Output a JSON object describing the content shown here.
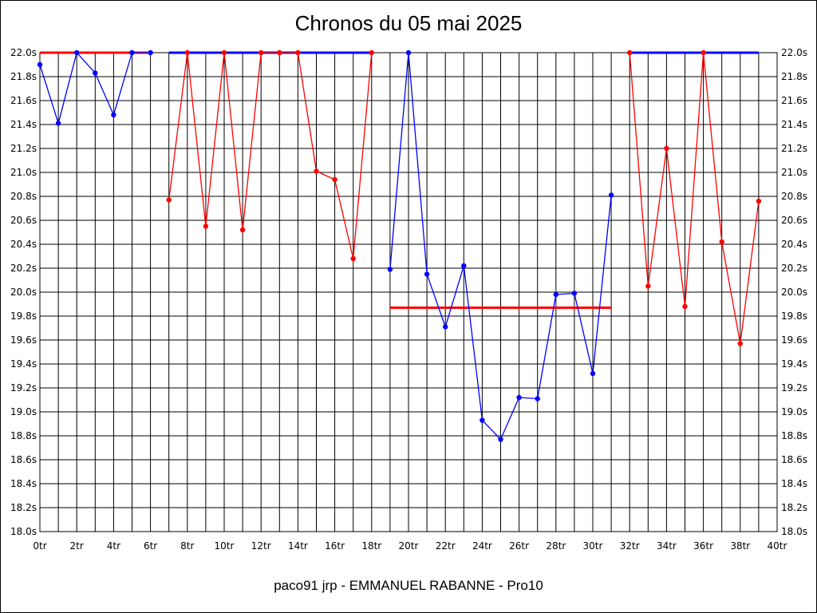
{
  "chart_data": {
    "type": "line",
    "title": "Chronos du 05 mai 2025",
    "subtitle": "paco91 jrp - EMMANUEL RABANNE - Pro10",
    "xlim": [
      0,
      40
    ],
    "ylim": [
      18.0,
      22.0
    ],
    "x_ticks": [
      "0tr",
      "2tr",
      "4tr",
      "6tr",
      "8tr",
      "10tr",
      "12tr",
      "14tr",
      "16tr",
      "18tr",
      "20tr",
      "22tr",
      "24tr",
      "26tr",
      "28tr",
      "30tr",
      "32tr",
      "34tr",
      "36tr",
      "38tr",
      "40tr"
    ],
    "y_ticks": [
      "18.0s",
      "18.2s",
      "18.4s",
      "18.6s",
      "18.8s",
      "19.0s",
      "19.2s",
      "19.4s",
      "19.6s",
      "19.8s",
      "20.0s",
      "20.2s",
      "20.4s",
      "20.6s",
      "20.8s",
      "21.0s",
      "21.2s",
      "21.4s",
      "21.6s",
      "21.8s",
      "22.0s"
    ],
    "grid": true,
    "colors": {
      "blue": "#0000ff",
      "red": "#ff0000"
    },
    "segments": [
      {
        "color": "blue",
        "points": [
          [
            0,
            21.9
          ],
          [
            1,
            21.41
          ],
          [
            2,
            22.0
          ],
          [
            3,
            21.83
          ],
          [
            4,
            21.48
          ],
          [
            5,
            22.0
          ],
          [
            6,
            22.0
          ]
        ]
      },
      {
        "color": "red",
        "points": [
          [
            7,
            20.77
          ],
          [
            8,
            22.0
          ],
          [
            9,
            20.55
          ],
          [
            10,
            22.0
          ],
          [
            11,
            20.52
          ],
          [
            12,
            22.0
          ],
          [
            13,
            22.0
          ],
          [
            14,
            22.0
          ],
          [
            15,
            21.01
          ],
          [
            16,
            20.94
          ],
          [
            17,
            20.28
          ],
          [
            18,
            22.0
          ]
        ]
      },
      {
        "color": "blue",
        "points": [
          [
            19,
            20.19
          ],
          [
            20,
            22.0
          ],
          [
            21,
            20.15
          ],
          [
            22,
            19.71
          ],
          [
            23,
            20.22
          ],
          [
            24,
            18.93
          ],
          [
            25,
            18.77
          ],
          [
            26,
            19.12
          ],
          [
            27,
            19.11
          ],
          [
            28,
            19.98
          ],
          [
            29,
            19.99
          ],
          [
            30,
            19.32
          ],
          [
            31,
            20.81
          ]
        ]
      },
      {
        "color": "red",
        "points": [
          [
            32,
            22.0
          ],
          [
            33,
            20.05
          ],
          [
            34,
            21.2
          ],
          [
            35,
            19.88
          ],
          [
            36,
            22.0
          ],
          [
            37,
            20.42
          ],
          [
            38,
            19.57
          ],
          [
            39,
            20.76
          ]
        ]
      }
    ],
    "reference_lines": [
      {
        "color": "red",
        "x": [
          0,
          6
        ],
        "y": 22.0
      },
      {
        "color": "blue",
        "x": [
          7,
          18
        ],
        "y": 22.0
      },
      {
        "color": "red",
        "x": [
          19,
          31
        ],
        "y": 19.87
      },
      {
        "color": "blue",
        "x": [
          32,
          39
        ],
        "y": 22.0
      }
    ]
  }
}
